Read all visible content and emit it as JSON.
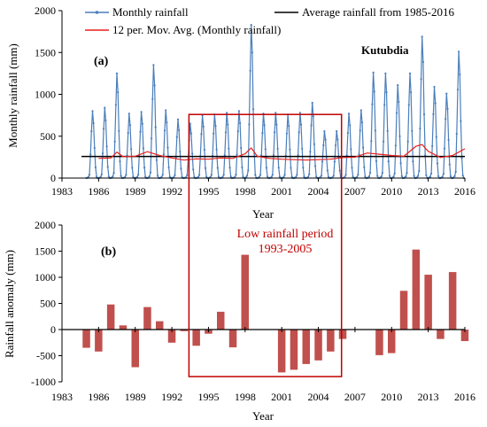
{
  "colors": {
    "monthly": "#4a7ebb",
    "moving_avg": "#e8201c",
    "average": "#000000",
    "anomaly_bar": "#c0504d",
    "highlight_box": "#c00000"
  },
  "chart_data": [
    {
      "type": "line",
      "panel_label": "(a)",
      "station_label": "Kutubdia",
      "xlabel": "Year",
      "ylabel": "Monthly rainfall (mm)",
      "xlim": [
        1983,
        2016
      ],
      "ylim": [
        0,
        2000
      ],
      "x_ticks": [
        1983,
        1986,
        1989,
        1992,
        1995,
        1998,
        2001,
        2004,
        2007,
        2010,
        2013,
        2016
      ],
      "y_ticks": [
        0,
        500,
        1000,
        1500,
        2000
      ],
      "grid": false,
      "legend_position": "top",
      "monthly_profile": [
        0.0,
        0.005,
        0.015,
        0.05,
        0.35,
        0.7,
        1.0,
        0.82,
        0.45,
        0.16,
        0.02,
        0.0
      ],
      "series": [
        {
          "name": "Monthly rainfall",
          "kind": "monthly",
          "annual_peaks": {
            "years": [
              1985,
              1986,
              1987,
              1988,
              1989,
              1990,
              1991,
              1992,
              1993,
              1994,
              1995,
              1996,
              1997,
              1998,
              1999,
              2000,
              2001,
              2002,
              2003,
              2004,
              2005,
              2006,
              2007,
              2008,
              2009,
              2010,
              2011,
              2012,
              2013,
              2014,
              2015
            ],
            "peak_mm": [
              800,
              840,
              1250,
              770,
              790,
              1350,
              810,
              700,
              650,
              750,
              760,
              780,
              800,
              1830,
              770,
              780,
              760,
              780,
              900,
              560,
              560,
              770,
              810,
              1260,
              1250,
              1110,
              1250,
              1690,
              1090,
              1010,
              1510
            ]
          }
        },
        {
          "name": "12 per. Mov. Avg. (Monthly rainfall)",
          "kind": "moving_average",
          "x": [
            1986.0,
            1987.0,
            1987.5,
            1988.0,
            1989.0,
            1990.0,
            1991.0,
            1992.0,
            1993.0,
            1994.0,
            1995.0,
            1996.0,
            1997.0,
            1998.0,
            1998.5,
            1999.0,
            2000.0,
            2001.0,
            2002.0,
            2003.0,
            2004.0,
            2005.0,
            2006.0,
            2007.0,
            2008.0,
            2009.0,
            2010.0,
            2011.0,
            2012.0,
            2012.5,
            2013.0,
            2014.0,
            2015.0,
            2016.0
          ],
          "y": [
            235,
            240,
            310,
            255,
            260,
            315,
            270,
            240,
            215,
            230,
            225,
            240,
            235,
            290,
            360,
            260,
            235,
            225,
            220,
            215,
            220,
            225,
            245,
            250,
            300,
            285,
            270,
            260,
            380,
            400,
            320,
            245,
            270,
            350
          ]
        },
        {
          "name": "Average rainfall from 1985-2016",
          "kind": "constant",
          "value": 258
        }
      ],
      "annotation_box": {
        "x_range": [
          1993.4,
          2005.9
        ],
        "y_range": [
          0,
          760
        ]
      }
    },
    {
      "type": "bar",
      "panel_label": "(b)",
      "xlabel": "Year",
      "ylabel": "Rainfall anomaly (mm)",
      "xlim": [
        1983,
        2016
      ],
      "ylim": [
        -1000,
        2000
      ],
      "x_ticks": [
        1983,
        1986,
        1989,
        1992,
        1995,
        1998,
        2001,
        2004,
        2007,
        2010,
        2013,
        2016
      ],
      "y_ticks": [
        -1000,
        -500,
        0,
        500,
        1000,
        1500,
        2000
      ],
      "grid": false,
      "years": [
        1985,
        1986,
        1987,
        1988,
        1989,
        1990,
        1991,
        1992,
        1993,
        1994,
        1995,
        1996,
        1997,
        1998,
        1999,
        2000,
        2001,
        2002,
        2003,
        2004,
        2005,
        2006,
        2007,
        2008,
        2009,
        2010,
        2011,
        2012,
        2013,
        2014,
        2015,
        2016
      ],
      "values": [
        -350,
        -420,
        480,
        80,
        -720,
        430,
        160,
        -250,
        -30,
        -310,
        -80,
        340,
        -340,
        1430,
        0,
        0,
        -820,
        -770,
        -660,
        -590,
        -420,
        -180,
        0,
        0,
        -490,
        -450,
        740,
        1530,
        1050,
        -180,
        1100,
        -220
      ],
      "annotation": {
        "text_line1": "Low rainfall period",
        "text_line2": "1993-2005",
        "x_range": [
          1993.4,
          2005.9
        ],
        "y_range": [
          -900,
          0
        ]
      }
    }
  ]
}
